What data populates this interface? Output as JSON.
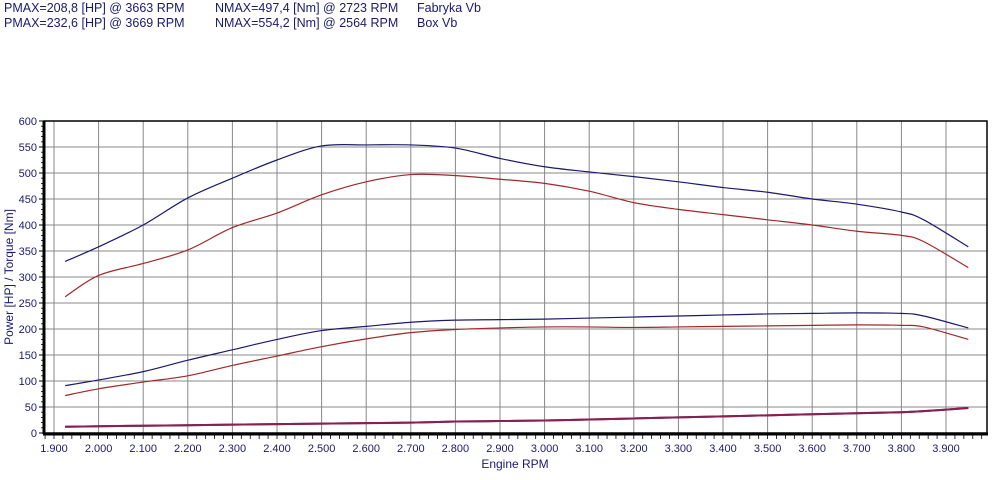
{
  "header": {
    "rows": [
      {
        "pmax": "PMAX=208,8 [HP] @ 3663 RPM",
        "nmax": "NMAX=497,4 [Nm] @ 2723 RPM",
        "label": "Fabryka Vb"
      },
      {
        "pmax": "PMAX=232,6 [HP] @ 3669 RPM",
        "nmax": "NMAX=554,2 [Nm] @ 2564 RPM",
        "label": "Box Vb"
      }
    ]
  },
  "colors": {
    "box": "#1a1a6e",
    "factory": "#a02828",
    "grid": "#888888"
  },
  "chart_data": {
    "type": "line",
    "title": "",
    "xlabel": "Engine RPM",
    "ylabel": "Power [HP] / Torque [Nm]",
    "xlim": [
      1900,
      3990
    ],
    "ylim": [
      0,
      600
    ],
    "xticks": [
      "1.900",
      "2.000",
      "2.100",
      "2.200",
      "2.300",
      "2.400",
      "2.500",
      "2.600",
      "2.700",
      "2.800",
      "2.900",
      "3.000",
      "3.100",
      "3.200",
      "3.300",
      "3.400",
      "3.500",
      "3.600",
      "3.700",
      "3.800",
      "3.900"
    ],
    "yticks": [
      0,
      50,
      100,
      150,
      200,
      250,
      300,
      350,
      400,
      450,
      500,
      550,
      600
    ],
    "grid": true,
    "legend": [
      "Fabryka Vb",
      "Box Vb"
    ],
    "x": [
      1925,
      2000,
      2100,
      2200,
      2300,
      2400,
      2500,
      2600,
      2700,
      2800,
      2900,
      3000,
      3100,
      3200,
      3300,
      3400,
      3500,
      3600,
      3700,
      3800,
      3850,
      3950
    ],
    "series": [
      {
        "name": "Box Vb Torque [Nm]",
        "color": "#1a1a6e",
        "values": [
          330,
          358,
          400,
          452,
          490,
          525,
          552,
          554,
          554,
          548,
          528,
          512,
          502,
          493,
          483,
          472,
          463,
          450,
          440,
          425,
          410,
          358
        ]
      },
      {
        "name": "Fabryka Vb Torque [Nm]",
        "color": "#a02828",
        "values": [
          262,
          303,
          326,
          352,
          395,
          423,
          458,
          483,
          497,
          495,
          488,
          480,
          465,
          443,
          430,
          420,
          410,
          400,
          388,
          380,
          368,
          318
        ]
      },
      {
        "name": "Box Vb Power [HP]",
        "color": "#1a1a6e",
        "values": [
          91,
          102,
          118,
          140,
          160,
          180,
          197,
          205,
          213,
          217,
          218,
          219,
          221,
          223,
          225,
          227,
          229,
          230,
          231,
          230,
          225,
          202
        ]
      },
      {
        "name": "Fabryka Vb Power [HP]",
        "color": "#a02828",
        "values": [
          72,
          85,
          98,
          110,
          130,
          148,
          166,
          181,
          193,
          199,
          202,
          204,
          204,
          203,
          204,
          205,
          206,
          207,
          208,
          207,
          204,
          180
        ]
      },
      {
        "name": "Box Vb Loss",
        "color": "#4a1a5e",
        "values": [
          12,
          13,
          14,
          15,
          16,
          17,
          18,
          19,
          20,
          22,
          23,
          24,
          26,
          28,
          30,
          32,
          34,
          36,
          38,
          40,
          42,
          48
        ]
      },
      {
        "name": "Fabryka Vb Loss",
        "color": "#8a2050",
        "values": [
          12,
          13,
          14,
          15,
          16,
          17,
          18,
          19,
          20,
          22,
          23,
          24,
          26,
          28,
          30,
          32,
          34,
          36,
          38,
          40,
          42,
          48
        ]
      }
    ]
  }
}
